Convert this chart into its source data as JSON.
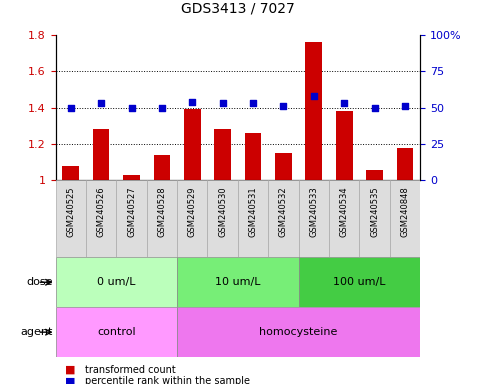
{
  "title": "GDS3413 / 7027",
  "samples": [
    "GSM240525",
    "GSM240526",
    "GSM240527",
    "GSM240528",
    "GSM240529",
    "GSM240530",
    "GSM240531",
    "GSM240532",
    "GSM240533",
    "GSM240534",
    "GSM240535",
    "GSM240848"
  ],
  "transformed_count": [
    1.08,
    1.28,
    1.03,
    1.14,
    1.39,
    1.28,
    1.26,
    1.15,
    1.76,
    1.38,
    1.06,
    1.18
  ],
  "percentile_rank": [
    50,
    53,
    50,
    50,
    54,
    53,
    53,
    51,
    58,
    53,
    50,
    51
  ],
  "bar_color": "#cc0000",
  "dot_color": "#0000cc",
  "ylim_left": [
    1.0,
    1.8
  ],
  "ylim_right": [
    0,
    100
  ],
  "yticks_left": [
    1.0,
    1.2,
    1.4,
    1.6,
    1.8
  ],
  "yticks_right": [
    0,
    25,
    50,
    75,
    100
  ],
  "ytick_labels_left": [
    "1",
    "1.2",
    "1.4",
    "1.6",
    "1.8"
  ],
  "ytick_labels_right": [
    "0",
    "25",
    "50",
    "75",
    "100%"
  ],
  "dose_groups": [
    {
      "label": "0 um/L",
      "start": 0,
      "end": 4,
      "color": "#bbffbb"
    },
    {
      "label": "10 um/L",
      "start": 4,
      "end": 8,
      "color": "#77ee77"
    },
    {
      "label": "100 um/L",
      "start": 8,
      "end": 12,
      "color": "#44cc44"
    }
  ],
  "agent_groups": [
    {
      "label": "control",
      "start": 0,
      "end": 4,
      "color": "#ff99ff"
    },
    {
      "label": "homocysteine",
      "start": 4,
      "end": 12,
      "color": "#ee77ee"
    }
  ],
  "legend_items": [
    {
      "label": "transformed count",
      "color": "#cc0000"
    },
    {
      "label": "percentile rank within the sample",
      "color": "#0000cc"
    }
  ],
  "background_color": "#ffffff",
  "tick_label_color_left": "#cc0000",
  "tick_label_color_right": "#0000cc",
  "sample_box_color": "#dddddd",
  "sample_box_edge": "#aaaaaa"
}
